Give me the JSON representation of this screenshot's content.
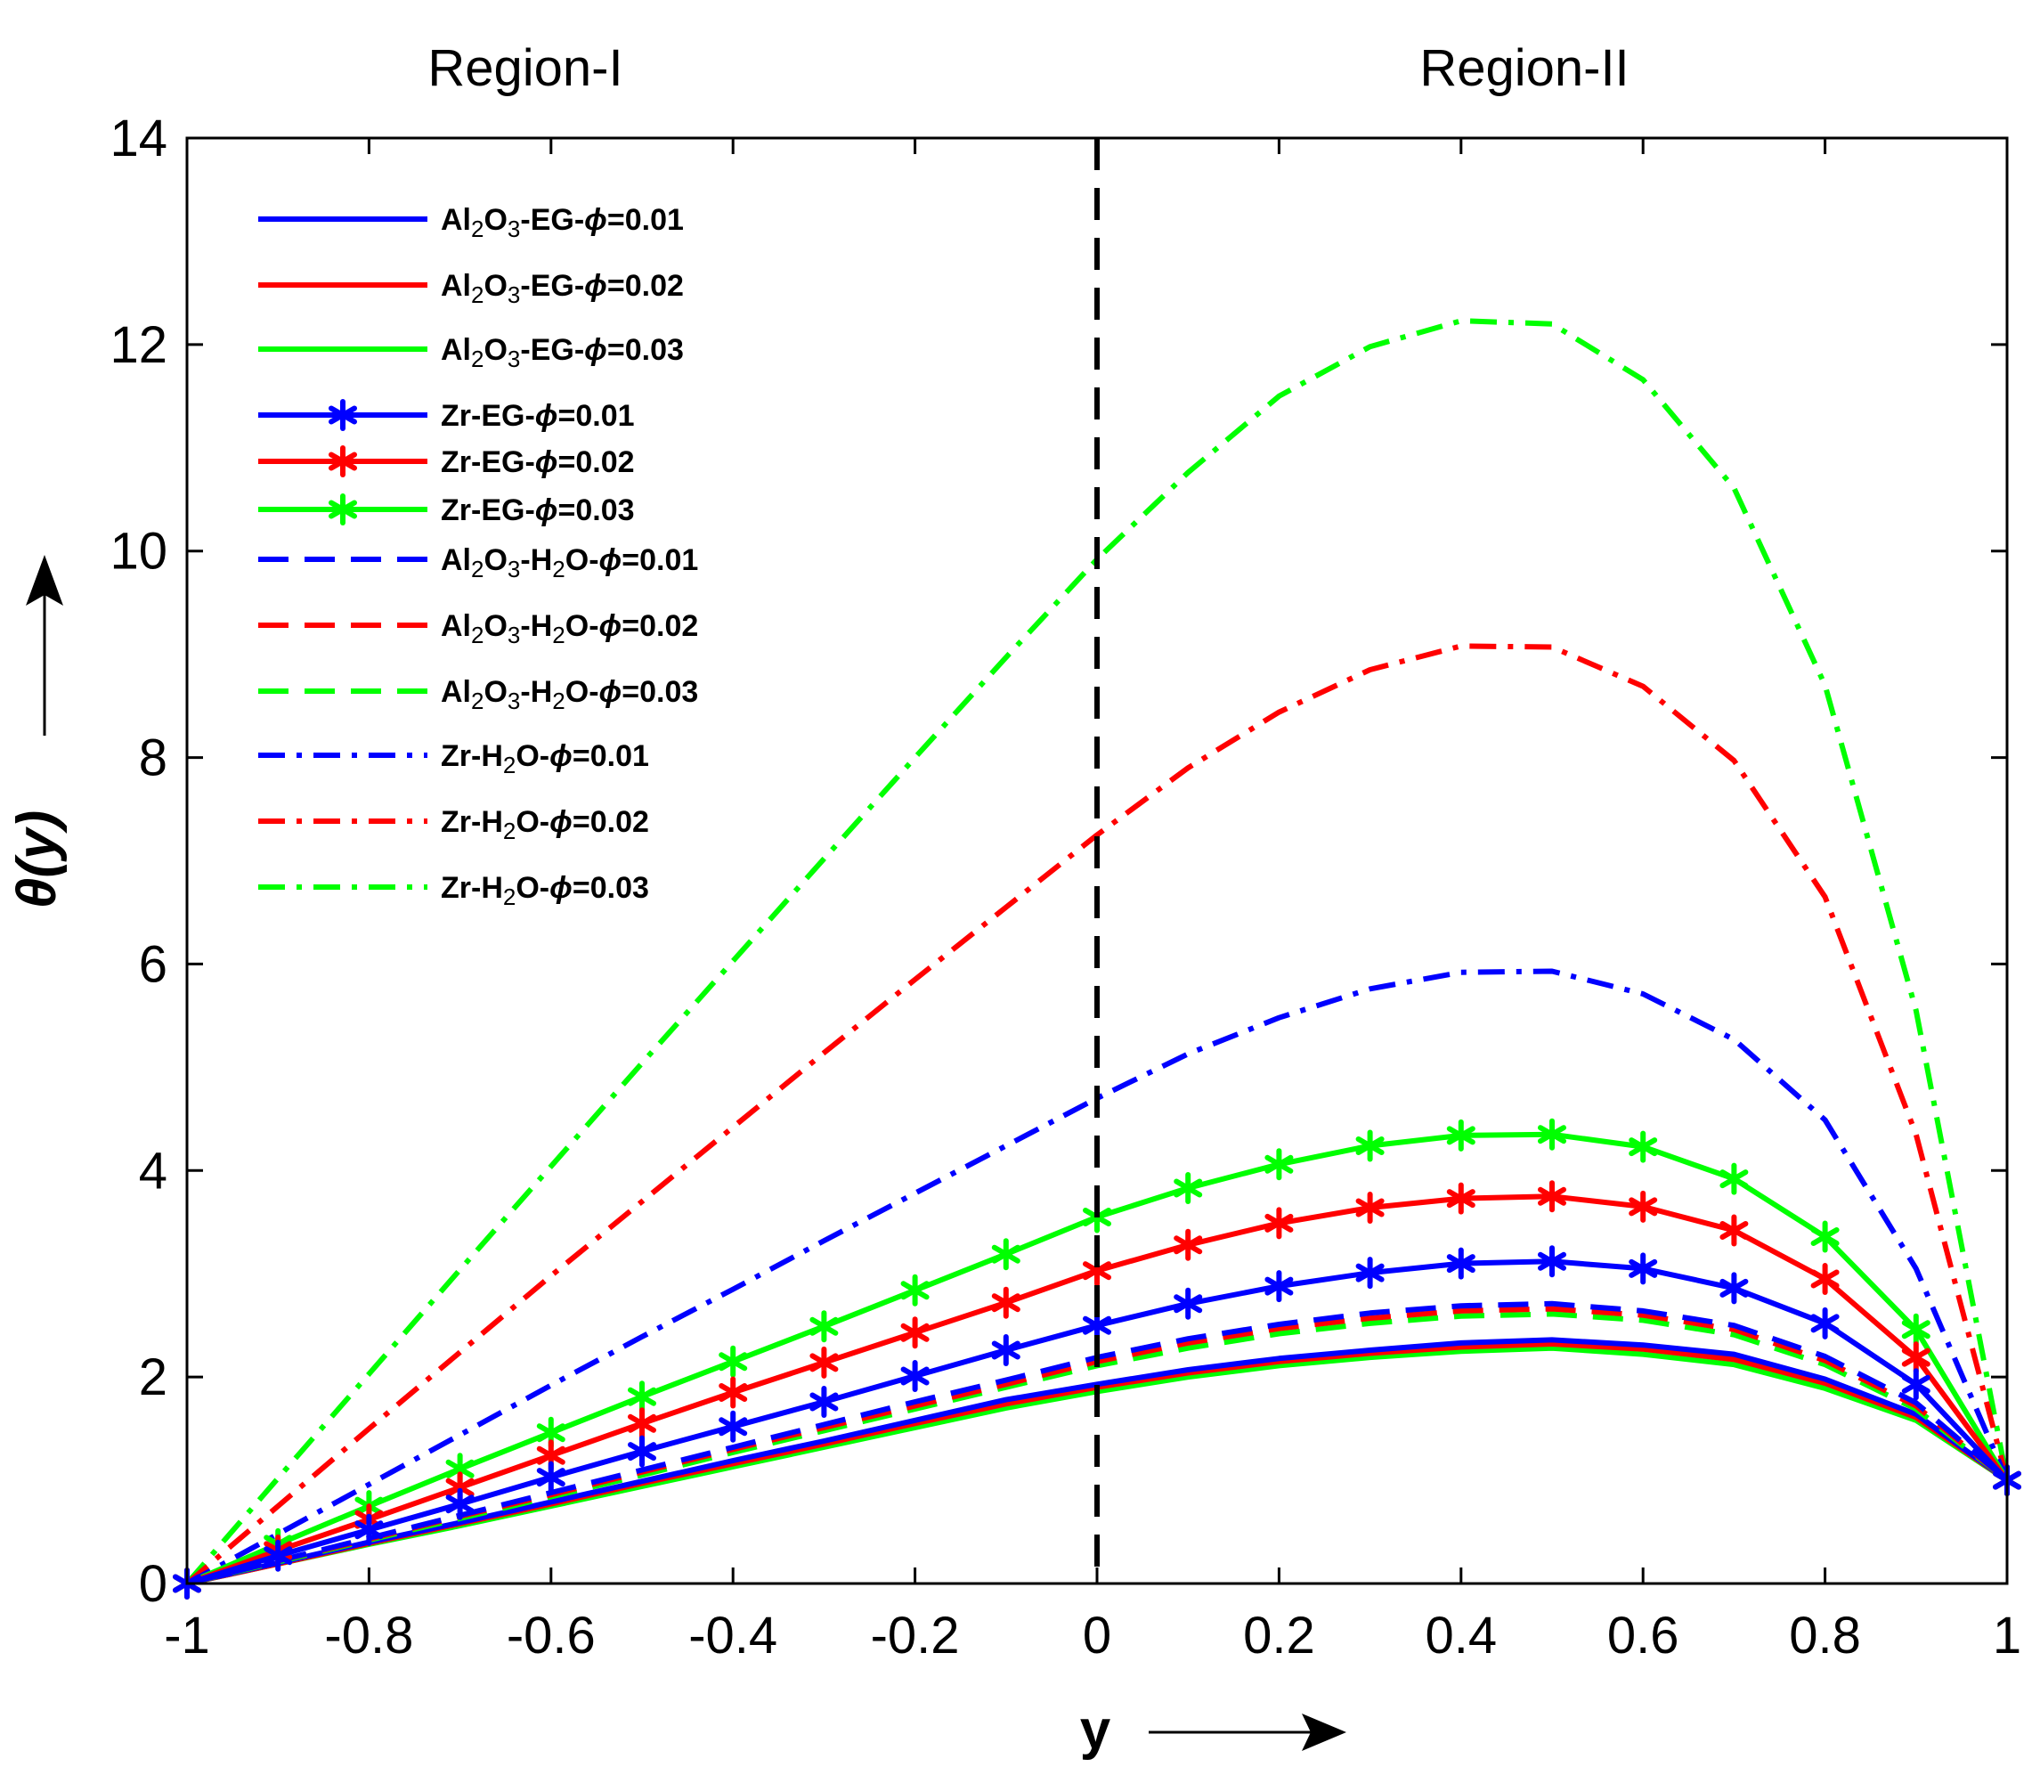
{
  "chart_data": {
    "type": "line",
    "title": "",
    "xlabel": "y",
    "ylabel": "θ(y)",
    "xlim": [
      -1,
      1
    ],
    "ylim": [
      0,
      14
    ],
    "xticks": [
      -1,
      -0.8,
      -0.6,
      -0.4,
      -0.2,
      0,
      0.2,
      0.4,
      0.6,
      0.8,
      1
    ],
    "xtick_labels": [
      "-1",
      "-0.8",
      "-0.6",
      "-0.4",
      "-0.2",
      "0",
      "0.2",
      "0.4",
      "0.6",
      "0.8",
      "1"
    ],
    "yticks": [
      0,
      2,
      4,
      6,
      8,
      10,
      12,
      14
    ],
    "ytick_labels": [
      "0",
      "2",
      "4",
      "6",
      "8",
      "10",
      "12",
      "14"
    ],
    "grid": false,
    "legend_position": "top-left",
    "region_labels": [
      "Region-I",
      "Region-II"
    ],
    "divider_x": 0,
    "colors": {
      "blue": "#0000ff",
      "red": "#ff0000",
      "green": "#00ff00",
      "axis": "#000000"
    },
    "x": [
      -1,
      -0.9,
      -0.8,
      -0.7,
      -0.6,
      -0.5,
      -0.4,
      -0.3,
      -0.2,
      -0.1,
      0,
      0.1,
      0.2,
      0.3,
      0.4,
      0.5,
      0.6,
      0.7,
      0.8,
      0.9,
      1
    ],
    "series": [
      {
        "name": "Al2O3-EG-ϕ=0.01",
        "color": "#0000ff",
        "style": "solid",
        "marker": false,
        "values": [
          0,
          0.2,
          0.4,
          0.59,
          0.79,
          0.99,
          1.19,
          1.38,
          1.58,
          1.78,
          1.93,
          2.07,
          2.18,
          2.26,
          2.33,
          2.36,
          2.31,
          2.22,
          1.98,
          1.64,
          1
        ]
      },
      {
        "name": "Al2O3-EG-ϕ=0.02",
        "color": "#ff0000",
        "style": "solid",
        "marker": false,
        "values": [
          0,
          0.19,
          0.39,
          0.58,
          0.77,
          0.97,
          1.16,
          1.35,
          1.55,
          1.74,
          1.9,
          2.04,
          2.15,
          2.23,
          2.29,
          2.32,
          2.27,
          2.17,
          1.94,
          1.61,
          1
        ]
      },
      {
        "name": "Al2O3-EG-ϕ=0.03",
        "color": "#00ff00",
        "style": "solid",
        "marker": false,
        "values": [
          0,
          0.19,
          0.38,
          0.56,
          0.75,
          0.94,
          1.13,
          1.32,
          1.51,
          1.7,
          1.86,
          2,
          2.11,
          2.19,
          2.25,
          2.28,
          2.22,
          2.12,
          1.89,
          1.58,
          1
        ]
      },
      {
        "name": "Zr-EG-ϕ=0.01",
        "color": "#0000ff",
        "style": "solid",
        "marker": true,
        "values": [
          0,
          0.27,
          0.52,
          0.77,
          1.03,
          1.28,
          1.52,
          1.76,
          2.01,
          2.26,
          2.5,
          2.71,
          2.88,
          3.01,
          3.1,
          3.12,
          3.05,
          2.86,
          2.52,
          1.93,
          1
        ]
      },
      {
        "name": "Zr-EG-ϕ=0.02",
        "color": "#ff0000",
        "style": "solid",
        "marker": true,
        "values": [
          0,
          0.32,
          0.62,
          0.93,
          1.24,
          1.55,
          1.85,
          2.14,
          2.43,
          2.72,
          3.03,
          3.28,
          3.49,
          3.64,
          3.73,
          3.75,
          3.65,
          3.42,
          2.95,
          2.19,
          1
        ]
      },
      {
        "name": "Zr-EG-ϕ=0.03",
        "color": "#00ff00",
        "style": "solid",
        "marker": true,
        "values": [
          0,
          0.38,
          0.75,
          1.11,
          1.46,
          1.81,
          2.15,
          2.49,
          2.84,
          3.19,
          3.55,
          3.83,
          4.06,
          4.24,
          4.34,
          4.35,
          4.23,
          3.92,
          3.36,
          2.46,
          1
        ]
      },
      {
        "name": "Al2O3-H2O-ϕ=0.01",
        "color": "#0000ff",
        "style": "dashed",
        "marker": false,
        "values": [
          0,
          0.22,
          0.44,
          0.66,
          0.88,
          1.1,
          1.32,
          1.54,
          1.76,
          1.97,
          2.19,
          2.37,
          2.51,
          2.62,
          2.69,
          2.71,
          2.64,
          2.5,
          2.2,
          1.75,
          1
        ]
      },
      {
        "name": "Al2O3-H2O-ϕ=0.02",
        "color": "#ff0000",
        "style": "dashed",
        "marker": false,
        "values": [
          0,
          0.22,
          0.43,
          0.65,
          0.86,
          1.08,
          1.3,
          1.51,
          1.72,
          1.93,
          2.15,
          2.33,
          2.47,
          2.57,
          2.64,
          2.66,
          2.6,
          2.46,
          2.16,
          1.72,
          1
        ]
      },
      {
        "name": "Al2O3-H2O-ϕ=0.03",
        "color": "#00ff00",
        "style": "dashed",
        "marker": false,
        "values": [
          0,
          0.21,
          0.42,
          0.63,
          0.84,
          1.05,
          1.27,
          1.48,
          1.69,
          1.9,
          2.11,
          2.28,
          2.42,
          2.52,
          2.59,
          2.61,
          2.55,
          2.41,
          2.12,
          1.69,
          1
        ]
      },
      {
        "name": "Zr-H2O-ϕ=0.01",
        "color": "#0000ff",
        "style": "dashdot",
        "marker": false,
        "values": [
          0,
          0.48,
          0.96,
          1.44,
          1.92,
          2.39,
          2.85,
          3.32,
          3.78,
          4.24,
          4.7,
          5.13,
          5.48,
          5.76,
          5.92,
          5.93,
          5.71,
          5.27,
          4.49,
          3.05,
          1
        ]
      },
      {
        "name": "Zr-H2O-ϕ=0.02",
        "color": "#ff0000",
        "style": "dashdot",
        "marker": false,
        "values": [
          0,
          0.75,
          1.5,
          2.24,
          2.98,
          3.7,
          4.42,
          5.14,
          5.85,
          6.55,
          7.25,
          7.9,
          8.44,
          8.85,
          9.08,
          9.07,
          8.69,
          7.97,
          6.65,
          4.35,
          1
        ]
      },
      {
        "name": "Zr-H2O-ϕ=0.03",
        "color": "#00ff00",
        "style": "dashdot",
        "marker": false,
        "values": [
          0,
          1.02,
          2.03,
          3.04,
          4.04,
          5.04,
          6.03,
          7.02,
          8,
          8.97,
          9.92,
          10.76,
          11.5,
          11.98,
          12.23,
          12.2,
          11.66,
          10.61,
          8.7,
          5.55,
          1
        ]
      }
    ],
    "legend": [
      {
        "parts": [
          [
            "t",
            "Al"
          ],
          [
            "sub",
            "2"
          ],
          [
            "t",
            "O"
          ],
          [
            "sub",
            "3"
          ],
          [
            "t",
            "-EG-"
          ],
          [
            "sym",
            "ϕ"
          ],
          [
            "t",
            "=0.01"
          ]
        ]
      },
      {
        "parts": [
          [
            "t",
            "Al"
          ],
          [
            "sub",
            "2"
          ],
          [
            "t",
            "O"
          ],
          [
            "sub",
            "3"
          ],
          [
            "t",
            "-EG-"
          ],
          [
            "sym",
            "ϕ"
          ],
          [
            "t",
            "=0.02"
          ]
        ]
      },
      {
        "parts": [
          [
            "t",
            "Al"
          ],
          [
            "sub",
            "2"
          ],
          [
            "t",
            "O"
          ],
          [
            "sub",
            "3"
          ],
          [
            "t",
            "-EG-"
          ],
          [
            "sym",
            "ϕ"
          ],
          [
            "t",
            "=0.03"
          ]
        ]
      },
      {
        "parts": [
          [
            "t",
            "Zr-EG-"
          ],
          [
            "sym",
            "ϕ"
          ],
          [
            "t",
            "=0.01"
          ]
        ]
      },
      {
        "parts": [
          [
            "t",
            "Zr-EG-"
          ],
          [
            "sym",
            "ϕ"
          ],
          [
            "t",
            "=0.02"
          ]
        ]
      },
      {
        "parts": [
          [
            "t",
            "Zr-EG-"
          ],
          [
            "sym",
            "ϕ"
          ],
          [
            "t",
            "=0.03"
          ]
        ]
      },
      {
        "parts": [
          [
            "t",
            "Al"
          ],
          [
            "sub",
            "2"
          ],
          [
            "t",
            "O"
          ],
          [
            "sub",
            "3"
          ],
          [
            "t",
            "-H"
          ],
          [
            "sub",
            "2"
          ],
          [
            "t",
            "O-"
          ],
          [
            "sym",
            "ϕ"
          ],
          [
            "t",
            "=0.01"
          ]
        ]
      },
      {
        "parts": [
          [
            "t",
            "Al"
          ],
          [
            "sub",
            "2"
          ],
          [
            "t",
            "O"
          ],
          [
            "sub",
            "3"
          ],
          [
            "t",
            "-H"
          ],
          [
            "sub",
            "2"
          ],
          [
            "t",
            "O-"
          ],
          [
            "sym",
            "ϕ"
          ],
          [
            "t",
            "=0.02"
          ]
        ]
      },
      {
        "parts": [
          [
            "t",
            "Al"
          ],
          [
            "sub",
            "2"
          ],
          [
            "t",
            "O"
          ],
          [
            "sub",
            "3"
          ],
          [
            "t",
            "-H"
          ],
          [
            "sub",
            "2"
          ],
          [
            "t",
            "O-"
          ],
          [
            "sym",
            "ϕ"
          ],
          [
            "t",
            "=0.03"
          ]
        ]
      },
      {
        "parts": [
          [
            "t",
            "Zr-H"
          ],
          [
            "sub",
            "2"
          ],
          [
            "t",
            "O-"
          ],
          [
            "sym",
            "ϕ"
          ],
          [
            "t",
            "=0.01"
          ]
        ]
      },
      {
        "parts": [
          [
            "t",
            "Zr-H"
          ],
          [
            "sub",
            "2"
          ],
          [
            "t",
            "O-"
          ],
          [
            "sym",
            "ϕ"
          ],
          [
            "t",
            "=0.02"
          ]
        ]
      },
      {
        "parts": [
          [
            "t",
            "Zr-H"
          ],
          [
            "sub",
            "2"
          ],
          [
            "t",
            "O-"
          ],
          [
            "sym",
            "ϕ"
          ],
          [
            "t",
            "=0.03"
          ]
        ]
      }
    ]
  }
}
